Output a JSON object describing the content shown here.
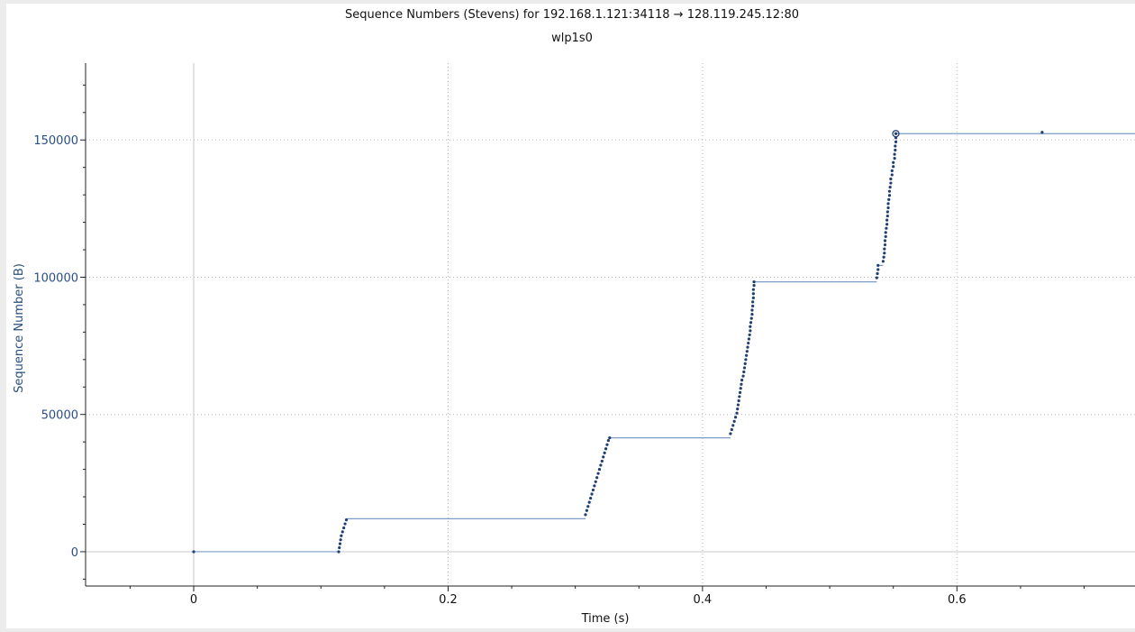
{
  "window": {
    "title": "Sequence Numbers (Stevens) for 192.168.1.121:34118 → 128.119.245.12:80",
    "subtitle": "wlp1s0"
  },
  "colors": {
    "points": "#1f3f73",
    "steps": "#7a9cc6",
    "axis_label": "#2a4f82",
    "grid": "#b8b8b8",
    "zero_lines": "#c8c8c8",
    "background": "#ffffff"
  },
  "chart_data": {
    "type": "scatter",
    "title": "Sequence Numbers (Stevens) for 192.168.1.121:34118 → 128.119.245.12:80",
    "subtitle": "wlp1s0",
    "xlabel": "Time (s)",
    "ylabel": "Sequence Number (B)",
    "xlim": [
      -0.085,
      0.74
    ],
    "ylim": [
      -12500,
      178000
    ],
    "x_ticks": [
      0,
      0.2,
      0.4,
      0.6
    ],
    "x_tick_labels": [
      "0",
      "0.2",
      "0.4",
      "0.6"
    ],
    "y_ticks": [
      0,
      50000,
      100000,
      150000
    ],
    "y_tick_labels": [
      "0",
      "50000",
      "100000",
      "150000"
    ],
    "grid": true,
    "legend": "none",
    "series": [
      {
        "values": [
          [
            0.0,
            0
          ],
          [
            0.114,
            0
          ],
          [
            0.1145,
            1450
          ],
          [
            0.115,
            2900
          ],
          [
            0.1155,
            4350
          ],
          [
            0.116,
            5800
          ],
          [
            0.117,
            7250
          ],
          [
            0.118,
            8700
          ],
          [
            0.119,
            10150
          ],
          [
            0.12,
            11600
          ],
          [
            0.308,
            13500
          ],
          [
            0.309,
            15000
          ],
          [
            0.31,
            16500
          ],
          [
            0.311,
            18000
          ],
          [
            0.312,
            19500
          ],
          [
            0.313,
            21000
          ],
          [
            0.314,
            22500
          ],
          [
            0.315,
            24000
          ],
          [
            0.316,
            25500
          ],
          [
            0.317,
            27000
          ],
          [
            0.318,
            28500
          ],
          [
            0.319,
            30000
          ],
          [
            0.32,
            31500
          ],
          [
            0.321,
            33000
          ],
          [
            0.322,
            34500
          ],
          [
            0.323,
            36000
          ],
          [
            0.324,
            37500
          ],
          [
            0.325,
            39000
          ],
          [
            0.326,
            40500
          ],
          [
            0.327,
            41500
          ],
          [
            0.422,
            43000
          ],
          [
            0.423,
            44500
          ],
          [
            0.424,
            46000
          ],
          [
            0.425,
            47500
          ],
          [
            0.426,
            49000
          ],
          [
            0.427,
            50500
          ],
          [
            0.4275,
            52000
          ],
          [
            0.428,
            53500
          ],
          [
            0.4285,
            55000
          ],
          [
            0.429,
            56500
          ],
          [
            0.4295,
            58000
          ],
          [
            0.43,
            59500
          ],
          [
            0.4305,
            61000
          ],
          [
            0.431,
            62500
          ],
          [
            0.432,
            64000
          ],
          [
            0.4325,
            65500
          ],
          [
            0.433,
            67000
          ],
          [
            0.4335,
            68500
          ],
          [
            0.434,
            70000
          ],
          [
            0.4345,
            71500
          ],
          [
            0.435,
            73000
          ],
          [
            0.4355,
            74500
          ],
          [
            0.436,
            76000
          ],
          [
            0.4365,
            77500
          ],
          [
            0.437,
            79000
          ],
          [
            0.4375,
            80500
          ],
          [
            0.4375,
            82000
          ],
          [
            0.438,
            83500
          ],
          [
            0.4385,
            85000
          ],
          [
            0.439,
            86500
          ],
          [
            0.439,
            88000
          ],
          [
            0.4395,
            89500
          ],
          [
            0.4395,
            91000
          ],
          [
            0.44,
            92500
          ],
          [
            0.44,
            94000
          ],
          [
            0.44,
            95500
          ],
          [
            0.4405,
            97000
          ],
          [
            0.4405,
            98300
          ],
          [
            0.537,
            99800
          ],
          [
            0.5375,
            101300
          ],
          [
            0.538,
            102800
          ],
          [
            0.538,
            104300
          ],
          [
            0.542,
            105800
          ],
          [
            0.5425,
            107300
          ],
          [
            0.543,
            108800
          ],
          [
            0.543,
            110300
          ],
          [
            0.5435,
            111800
          ],
          [
            0.5435,
            113300
          ],
          [
            0.544,
            114800
          ],
          [
            0.544,
            116300
          ],
          [
            0.5445,
            117800
          ],
          [
            0.545,
            119300
          ],
          [
            0.545,
            120800
          ],
          [
            0.5455,
            122300
          ],
          [
            0.5455,
            123800
          ],
          [
            0.546,
            125300
          ],
          [
            0.546,
            126800
          ],
          [
            0.5465,
            128300
          ],
          [
            0.547,
            129800
          ],
          [
            0.547,
            131300
          ],
          [
            0.5475,
            132800
          ],
          [
            0.548,
            134300
          ],
          [
            0.548,
            135800
          ],
          [
            0.549,
            137300
          ],
          [
            0.549,
            138800
          ],
          [
            0.55,
            140300
          ],
          [
            0.55,
            141800
          ],
          [
            0.551,
            143300
          ],
          [
            0.551,
            144800
          ],
          [
            0.5515,
            146300
          ],
          [
            0.5515,
            147800
          ],
          [
            0.552,
            149300
          ],
          [
            0.552,
            150800
          ],
          [
            0.552,
            152300
          ],
          [
            0.667,
            152800
          ]
        ]
      }
    ],
    "step_segments": [
      [
        0.0,
        0,
        0.114,
        0
      ],
      [
        0.12,
        12000,
        0.308,
        12000
      ],
      [
        0.327,
        41500,
        0.422,
        41500
      ],
      [
        0.4405,
        98300,
        0.537,
        98300
      ],
      [
        0.538,
        104300,
        0.542,
        104300
      ],
      [
        0.552,
        152300,
        0.74,
        152300
      ]
    ],
    "highlight_point": [
      0.552,
      152300
    ]
  }
}
